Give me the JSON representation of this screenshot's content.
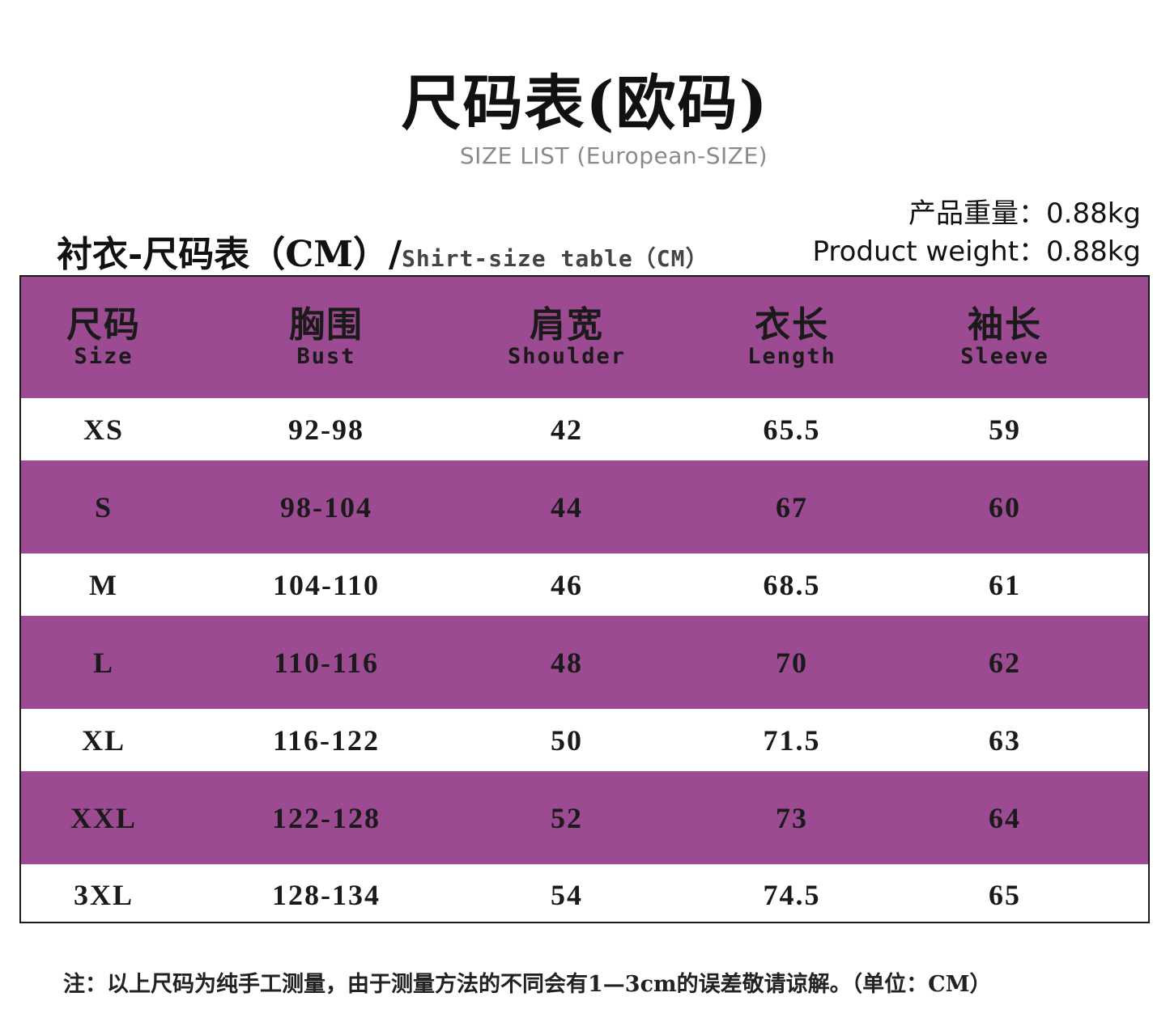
{
  "title": "尺码表(欧码)",
  "subtitle": "SIZE LIST (European-SIZE)",
  "product_weight": {
    "cn": "产品重量：0.88kg",
    "en": "Product weight：0.88kg"
  },
  "table_heading": {
    "cn": "衬衣-尺码表（CM）/",
    "en": "Shirt-size table（CM）"
  },
  "colors": {
    "purple": "#9c4a91",
    "white": "#ffffff",
    "border": "#1a1a1a"
  },
  "columns": [
    {
      "cn": "尺码",
      "en": "Size"
    },
    {
      "cn": "胸围",
      "en": "Bust"
    },
    {
      "cn": "肩宽",
      "en": "Shoulder"
    },
    {
      "cn": "衣长",
      "en": "Length"
    },
    {
      "cn": "袖长",
      "en": "Sleeve"
    }
  ],
  "rows": [
    [
      "XS",
      "92-98",
      "42",
      "65.5",
      "59"
    ],
    [
      "S",
      "98-104",
      "44",
      "67",
      "60"
    ],
    [
      "M",
      "104-110",
      "46",
      "68.5",
      "61"
    ],
    [
      "L",
      "110-116",
      "48",
      "70",
      "62"
    ],
    [
      "XL",
      "116-122",
      "50",
      "71.5",
      "63"
    ],
    [
      "XXL",
      "122-128",
      "52",
      "73",
      "64"
    ],
    [
      "3XL",
      "128-134",
      "54",
      "74.5",
      "65"
    ]
  ],
  "note": "注：以上尺码为纯手工测量，由于测量方法的不同会有1—3cm的误差敬请谅解。（单位：CM）"
}
